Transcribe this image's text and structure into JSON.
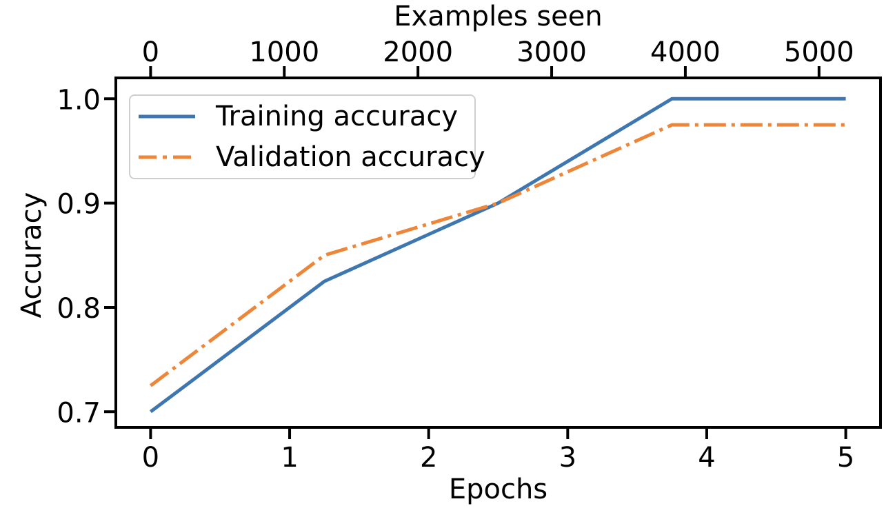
{
  "figure": {
    "background": "#ffffff",
    "axis_color": "#000000",
    "legend_border_color": "#cfcfcf"
  },
  "chart_data": {
    "type": "line",
    "title": "",
    "grid": false,
    "axes": {
      "top": {
        "label": "Examples seen",
        "ticks": [
          0,
          1000,
          2000,
          3000,
          4000,
          5000
        ],
        "tick_labels": [
          "0",
          "1000",
          "2000",
          "3000",
          "4000",
          "5000"
        ],
        "lim": [
          -260,
          5460
        ]
      },
      "bottom": {
        "label": "Epochs",
        "ticks": [
          0,
          1,
          2,
          3,
          4,
          5
        ],
        "tick_labels": [
          "0",
          "1",
          "2",
          "3",
          "4",
          "5"
        ],
        "lim": [
          -0.25,
          5.25
        ]
      },
      "left": {
        "label": "Accuracy",
        "ticks": [
          0.7,
          0.8,
          0.9,
          1.0
        ],
        "tick_labels": [
          "0.7",
          "0.8",
          "0.9",
          "1.0"
        ],
        "lim": [
          0.685,
          1.02
        ]
      }
    },
    "x_epochs": [
      0,
      1.25,
      2.5,
      3.75,
      5.0
    ],
    "x_examples_seen": [
      0,
      1300,
      2600,
      3900,
      5200
    ],
    "series": [
      {
        "name": "Training accuracy",
        "color": "#3e76b0",
        "line_style": "solid",
        "values": [
          0.7,
          0.825,
          0.9,
          1.0,
          1.0
        ]
      },
      {
        "name": "Validation accuracy",
        "color": "#ee8639",
        "line_style": "dash-dot",
        "values": [
          0.725,
          0.85,
          0.9,
          0.975,
          0.975
        ]
      }
    ],
    "legend": {
      "position": "upper left",
      "entries": [
        "Training accuracy",
        "Validation accuracy"
      ]
    }
  }
}
